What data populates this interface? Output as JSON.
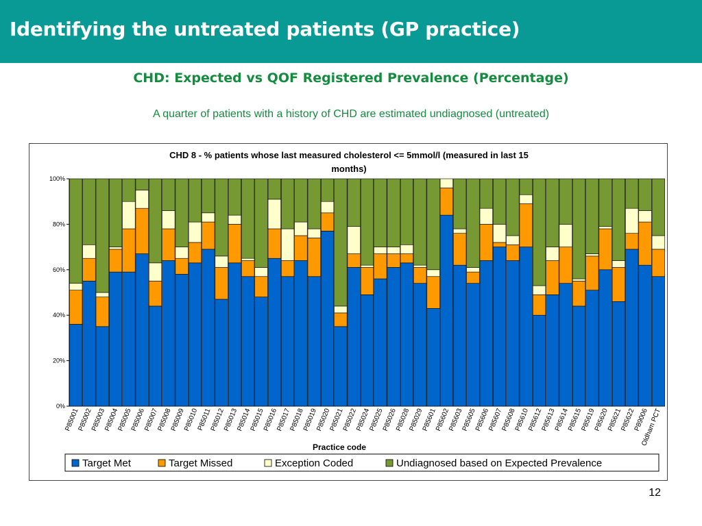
{
  "slide": {
    "header_title": "Identifying the untreated patients (GP practice)",
    "title": "CHD: Expected vs QOF Registered Prevalence (Percentage)",
    "subtitle": "A quarter of patients with a history of CHD are estimated undiagnosed (untreated)",
    "page_number": "12"
  },
  "colors": {
    "header_bg": "#0a9a96",
    "title_green": "#138c3e",
    "target_met": "#0066cc",
    "target_missed": "#ff9900",
    "exception_coded": "#ffffcc",
    "undiagnosed": "#779933"
  },
  "chart_data": {
    "type": "bar",
    "stacked": true,
    "title_line1": "CHD 8 - % patients whose last measured cholesterol <= 5mmol/l (measured in last 15",
    "title_line2": "months)",
    "xlabel": "Practice code",
    "ylabel": "",
    "ylim": [
      0,
      100
    ],
    "yticks": [
      "0%",
      "20%",
      "40%",
      "60%",
      "80%",
      "100%"
    ],
    "legend_position": "bottom",
    "categories": [
      "P85001",
      "P85002",
      "P85003",
      "P85004",
      "P85005",
      "P85006",
      "P85007",
      "P85008",
      "P85009",
      "P85010",
      "P85011",
      "P85012",
      "P85013",
      "P85014",
      "P85015",
      "P85016",
      "P85017",
      "P85018",
      "P85019",
      "P85020",
      "P85021",
      "P85022",
      "P85024",
      "P85025",
      "P85026",
      "P85028",
      "P85029",
      "P85601",
      "P85602",
      "P85603",
      "P85605",
      "P85606",
      "P85607",
      "P85608",
      "P85610",
      "P85612",
      "P85613",
      "P85614",
      "P85615",
      "P85619",
      "P85620",
      "P85621",
      "P85622",
      "P89006",
      "Oldham PCT"
    ],
    "series": [
      {
        "name": "Target Met",
        "color": "#0066cc",
        "values": [
          36,
          55,
          35,
          59,
          59,
          67,
          44,
          64,
          58,
          63,
          69,
          47,
          63,
          57,
          48,
          65,
          57,
          64,
          57,
          77,
          35,
          61,
          49,
          56,
          61,
          63,
          54,
          43,
          84,
          62,
          54,
          64,
          70,
          64,
          70,
          40,
          49,
          54,
          44,
          51,
          60,
          46,
          69,
          62,
          57
        ]
      },
      {
        "name": "Target Missed",
        "color": "#ff9900",
        "values": [
          15,
          10,
          13,
          10,
          19,
          20,
          11,
          14,
          7,
          9,
          12,
          14,
          17,
          7,
          9,
          13,
          7,
          11,
          17,
          8,
          6,
          6,
          12,
          11,
          6,
          4,
          7,
          14,
          12,
          14,
          5,
          16,
          2,
          7,
          19,
          9,
          15,
          16,
          11,
          15,
          18,
          15,
          7,
          19,
          12
        ]
      },
      {
        "name": "Exception Coded",
        "color": "#ffffcc",
        "values": [
          3,
          6,
          2,
          1,
          12,
          8,
          8,
          8,
          5,
          9,
          4,
          5,
          4,
          1,
          4,
          13,
          14,
          6,
          4,
          5,
          3,
          12,
          1,
          3,
          3,
          4,
          1,
          3,
          4,
          2,
          2,
          7,
          8,
          4,
          4,
          4,
          6,
          10,
          1,
          1,
          1,
          3,
          11,
          5,
          6
        ]
      },
      {
        "name": "Undiagnosed based on Expected Prevalence",
        "color": "#779933",
        "values": [
          46,
          29,
          50,
          30,
          10,
          5,
          37,
          14,
          30,
          19,
          15,
          34,
          16,
          35,
          39,
          9,
          22,
          19,
          22,
          10,
          56,
          21,
          38,
          30,
          30,
          29,
          38,
          40,
          0,
          22,
          39,
          13,
          20,
          25,
          7,
          47,
          30,
          20,
          44,
          33,
          21,
          36,
          13,
          14,
          25
        ]
      }
    ]
  }
}
